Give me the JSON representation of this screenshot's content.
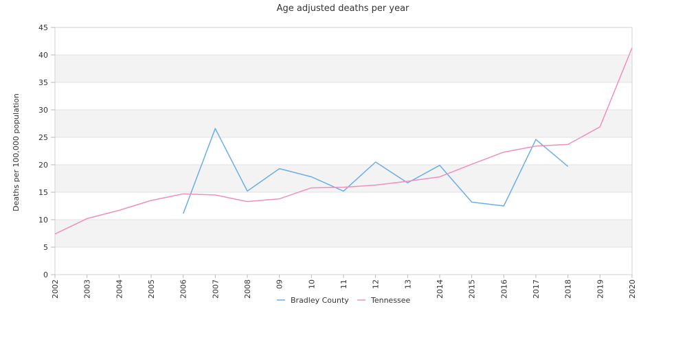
{
  "chart_data": {
    "type": "line",
    "title": "Age adjusted deaths per year",
    "xlabel": "",
    "ylabel": "Deaths per 100,000 population",
    "ylim": [
      0,
      45
    ],
    "yticks": [
      0,
      5,
      10,
      15,
      20,
      25,
      30,
      35,
      40,
      45
    ],
    "grid": "horizontal bands",
    "legend_position": "bottom-center",
    "categories": [
      "2002",
      "2003",
      "2004",
      "2005",
      "2006",
      "2007",
      "2008",
      "09",
      "10",
      "11",
      "12",
      "13",
      "2014",
      "2015",
      "2016",
      "2017",
      "2018",
      "2019",
      "2020"
    ],
    "series": [
      {
        "name": "Bradley County",
        "color": "#6aaee8",
        "values": [
          null,
          null,
          null,
          null,
          11.1,
          26.6,
          15.2,
          19.3,
          17.8,
          15.2,
          20.5,
          16.7,
          19.9,
          13.2,
          12.5,
          24.6,
          19.7,
          null,
          null
        ]
      },
      {
        "name": "Tennessee",
        "color": "#ef8fbf",
        "values": [
          7.4,
          10.2,
          11.7,
          13.5,
          14.7,
          14.5,
          13.3,
          13.8,
          15.8,
          15.9,
          16.3,
          17.0,
          17.8,
          20.1,
          22.3,
          23.4,
          23.7,
          26.9,
          41.3
        ]
      }
    ]
  }
}
